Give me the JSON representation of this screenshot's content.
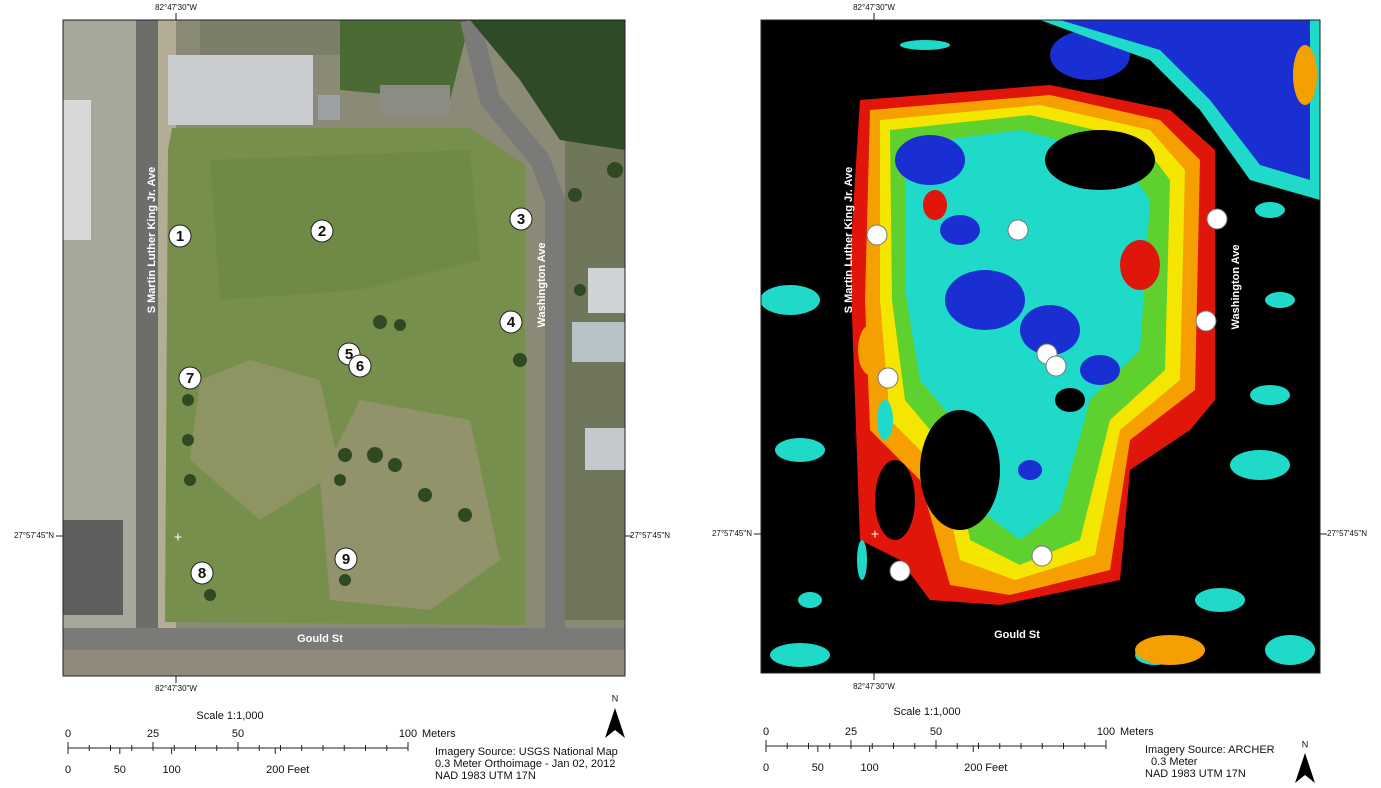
{
  "panels": [
    {
      "longitude_top": "82°47'30\"W",
      "longitude_bottom": "82°47'30\"W",
      "latitude_left": "27°57'45\"N",
      "latitude_right": "27°57'45\"N",
      "streets": {
        "west": "S Martin Luther King Jr. Ave",
        "east": "Washington Ave",
        "south": "Gould St"
      },
      "markers": [
        "1",
        "2",
        "3",
        "4",
        "5",
        "6",
        "7",
        "8",
        "9"
      ],
      "scale": {
        "title": "Scale 1:1,000",
        "meters": [
          0,
          25,
          50,
          100
        ],
        "meters_unit": "Meters",
        "feet": [
          0,
          50,
          100,
          200
        ],
        "feet_unit": "Feet"
      },
      "north": "N",
      "source": [
        "Imagery Source: USGS National Map",
        "0.3 Meter Orthoimage - Jan 02, 2012",
        "NAD 1983 UTM 17N"
      ]
    },
    {
      "longitude_top": "82°47'30\"W",
      "longitude_bottom": "82°47'30\"W",
      "latitude_left": "27°57'45\"N",
      "latitude_right": "27°57'45\"N",
      "streets": {
        "west": "S Martin Luther King Jr. Ave",
        "east": "Washington Ave",
        "south": "Gould St"
      },
      "scale": {
        "title": "Scale 1:1,000",
        "meters": [
          0,
          25,
          50,
          100
        ],
        "meters_unit": "Meters",
        "feet": [
          0,
          50,
          100,
          200
        ],
        "feet_unit": "Feet"
      },
      "north": "N",
      "source": [
        "Imagery Source: ARCHER",
        "0.3 Meter",
        "NAD 1983 UTM 17N"
      ]
    }
  ]
}
